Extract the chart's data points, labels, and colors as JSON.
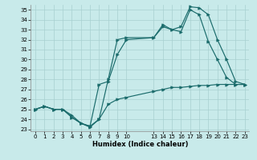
{
  "xlabel": "Humidex (Indice chaleur)",
  "bg_color": "#c8eaea",
  "grid_color": "#a8d0d0",
  "line_color": "#1a6b6b",
  "xlim": [
    -0.5,
    23.5
  ],
  "ylim": [
    22.8,
    35.5
  ],
  "yticks": [
    23,
    24,
    25,
    26,
    27,
    28,
    29,
    30,
    31,
    32,
    33,
    34,
    35
  ],
  "xticks": [
    0,
    1,
    2,
    3,
    4,
    5,
    6,
    7,
    8,
    9,
    10,
    13,
    14,
    15,
    16,
    17,
    18,
    19,
    20,
    21,
    22,
    23
  ],
  "line1_x": [
    0,
    1,
    2,
    3,
    4,
    5,
    6,
    7,
    8,
    9,
    10,
    13,
    14,
    15,
    16,
    17,
    18,
    19,
    20,
    21,
    22,
    23
  ],
  "line1_y": [
    25.0,
    25.3,
    25.0,
    25.0,
    24.4,
    23.6,
    23.2,
    24.0,
    25.5,
    26.0,
    26.2,
    26.8,
    27.0,
    27.2,
    27.2,
    27.3,
    27.4,
    27.4,
    27.5,
    27.5,
    27.5,
    27.5
  ],
  "line2_x": [
    0,
    1,
    2,
    3,
    4,
    5,
    6,
    7,
    8,
    9,
    10,
    13,
    14,
    15,
    16,
    17,
    18,
    19,
    20,
    21,
    22,
    23
  ],
  "line2_y": [
    25.0,
    25.3,
    25.0,
    25.0,
    24.2,
    23.6,
    23.3,
    27.5,
    27.8,
    30.5,
    32.0,
    32.2,
    33.3,
    33.0,
    32.8,
    35.0,
    34.5,
    31.8,
    30.0,
    28.2,
    27.5,
    27.5
  ],
  "line3_x": [
    0,
    1,
    2,
    3,
    4,
    5,
    6,
    7,
    8,
    9,
    10,
    13,
    14,
    15,
    16,
    17,
    18,
    19,
    20,
    21,
    22,
    23
  ],
  "line3_y": [
    25.0,
    25.3,
    25.0,
    25.0,
    24.2,
    23.6,
    23.3,
    24.0,
    28.0,
    32.0,
    32.2,
    32.2,
    33.5,
    33.0,
    33.3,
    35.3,
    35.2,
    34.5,
    32.0,
    30.0,
    27.8,
    27.5
  ]
}
